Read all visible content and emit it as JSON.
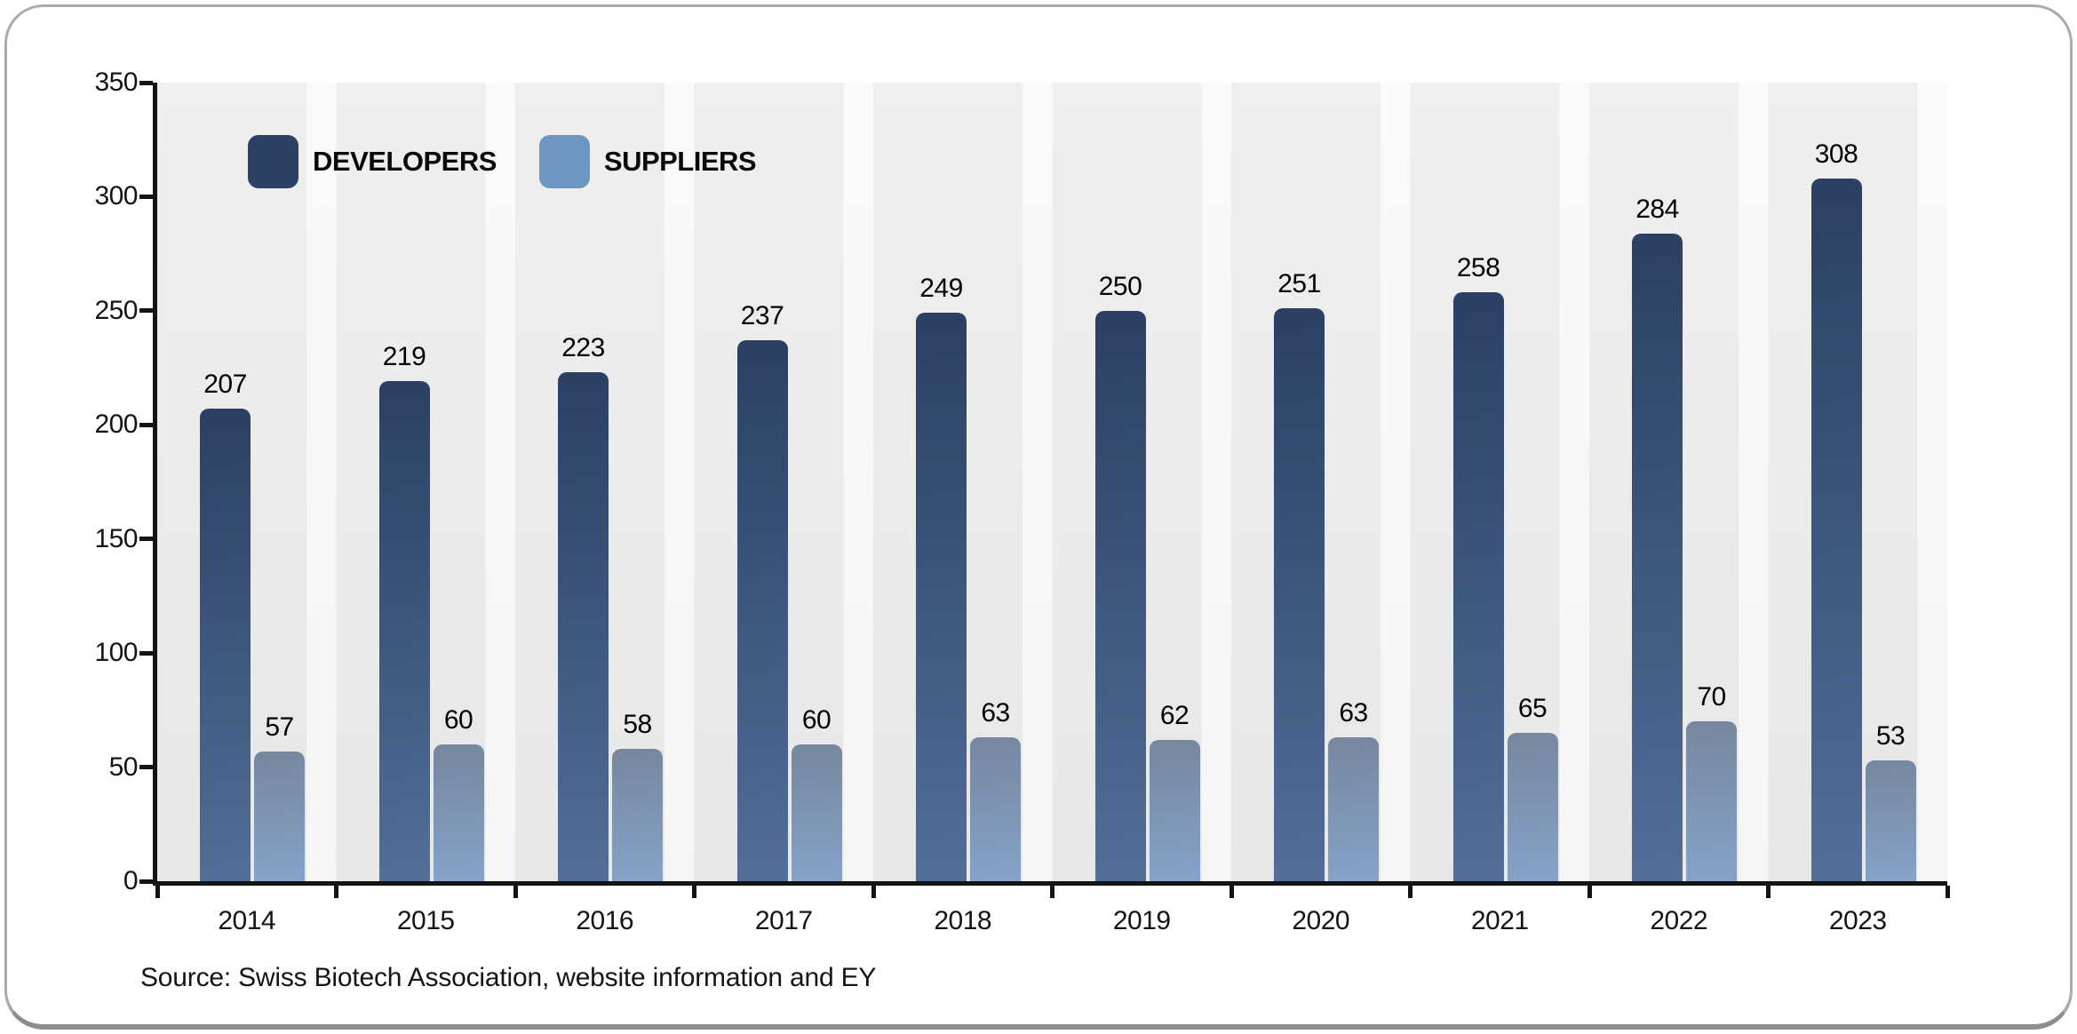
{
  "legend": {
    "developers": "DEVELOPERS",
    "suppliers": "SUPPLIERS"
  },
  "source_note": "Source: Swiss Biotech Association, website information and EY",
  "colors": {
    "developers_swatch": "#2d4166",
    "suppliers_swatch": "#6d96c1",
    "axis": "#141414",
    "plot_background": "#f0f0f1",
    "card_border": "#ababab"
  },
  "chart_data": {
    "type": "bar",
    "title": "",
    "xlabel": "",
    "ylabel": "",
    "categories": [
      "2014",
      "2015",
      "2016",
      "2017",
      "2018",
      "2019",
      "2020",
      "2021",
      "2022",
      "2023"
    ],
    "series": [
      {
        "name": "DEVELOPERS",
        "color_top": "#2b3f63",
        "color_bottom": "#516f98",
        "values": [
          207,
          219,
          223,
          237,
          249,
          250,
          251,
          258,
          284,
          308
        ]
      },
      {
        "name": "SUPPLIERS",
        "color_top": "#77869e",
        "color_bottom": "#85a3c9",
        "values": [
          57,
          60,
          58,
          60,
          63,
          62,
          63,
          65,
          70,
          53
        ]
      }
    ],
    "ylim": [
      0,
      350
    ],
    "yticks": [
      0,
      50,
      100,
      150,
      200,
      250,
      300,
      350
    ],
    "grid": false,
    "legend_position": "top-left",
    "value_labels": true
  }
}
